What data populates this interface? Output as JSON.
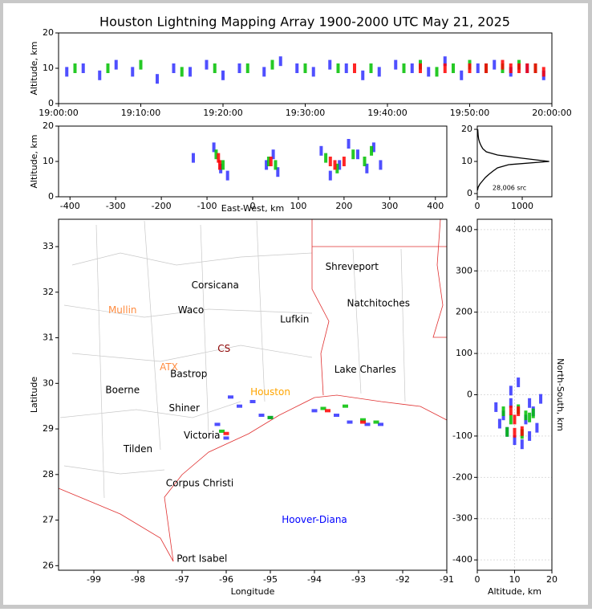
{
  "title": "Houston Lightning Mapping Array 1900-2000 UTC May 21, 2025",
  "chart_data": [
    {
      "type": "scatter",
      "ylabel": "Altitude, km",
      "xlim": [
        0,
        60
      ],
      "ylim": [
        0,
        20
      ],
      "yticks": [
        0,
        10,
        20
      ],
      "xticks": [
        {
          "value": 0,
          "label": "19:00:00"
        },
        {
          "value": 10,
          "label": "19:10:00"
        },
        {
          "value": 20,
          "label": "19:20:00"
        },
        {
          "value": 30,
          "label": "19:30:00"
        },
        {
          "value": 40,
          "label": "19:40:00"
        },
        {
          "value": 50,
          "label": "19:50:00"
        },
        {
          "value": 60,
          "label": "20:00:00"
        }
      ],
      "series": [
        {
          "color": "#3030ff",
          "x": [
            1,
            3,
            5,
            7,
            9,
            12,
            14,
            16,
            18,
            20,
            22,
            25,
            27,
            29,
            31,
            33,
            35,
            37,
            39,
            41,
            43,
            45,
            47,
            49,
            51,
            53,
            55,
            57,
            59
          ],
          "y": [
            9,
            10,
            8,
            11,
            9,
            7,
            10,
            9,
            11,
            8,
            10,
            9,
            12,
            10,
            9,
            11,
            10,
            8,
            9,
            11,
            10,
            9,
            12,
            8,
            10,
            11,
            9,
            10,
            8
          ]
        },
        {
          "color": "#00c000",
          "x": [
            2,
            6,
            10,
            15,
            19,
            23,
            26,
            30,
            34,
            38,
            42,
            44,
            46,
            48,
            50,
            52,
            54,
            56,
            58
          ],
          "y": [
            10,
            10,
            11,
            9,
            10,
            10,
            11,
            10,
            10,
            10,
            10,
            11,
            9,
            10,
            11,
            10,
            10,
            11,
            10
          ]
        },
        {
          "color": "#ff0000",
          "x": [
            36,
            44,
            47,
            50,
            52,
            54,
            55,
            56,
            57,
            58,
            59
          ],
          "y": [
            10,
            10,
            10,
            10,
            10,
            11,
            10,
            10,
            10,
            10,
            9
          ]
        }
      ]
    },
    {
      "type": "scatter",
      "xlabel": "East-West, km",
      "ylabel": "Altitude, km",
      "xlim": [
        -425,
        425
      ],
      "ylim": [
        0,
        20
      ],
      "xticks": [
        -400,
        -300,
        -200,
        -100,
        0,
        100,
        200,
        300,
        400
      ],
      "yticks": [
        0,
        10,
        20
      ],
      "series": [
        {
          "color": "#3030ff",
          "x": [
            -130,
            -85,
            -70,
            -55,
            30,
            45,
            55,
            150,
            170,
            190,
            210,
            230,
            250,
            265,
            280
          ],
          "y": [
            11,
            14,
            8,
            6,
            9,
            12,
            7,
            13,
            6,
            9,
            15,
            12,
            8,
            14,
            9
          ]
        },
        {
          "color": "#00c000",
          "x": [
            -80,
            -65,
            35,
            50,
            160,
            185,
            220,
            245,
            260
          ],
          "y": [
            12,
            9,
            10,
            9,
            11,
            8,
            12,
            10,
            13
          ]
        },
        {
          "color": "#ff0000",
          "x": [
            -75,
            -72,
            40,
            170,
            180,
            200
          ],
          "y": [
            11,
            9,
            10,
            10,
            9,
            10
          ]
        }
      ]
    },
    {
      "type": "line",
      "annotation": "28,006 src",
      "xlim": [
        0,
        1660
      ],
      "ylim": [
        -1,
        21
      ],
      "xticks": [
        0,
        1000
      ],
      "yticks": [
        0,
        10,
        20
      ],
      "series": [
        {
          "color": "#000000",
          "x": [
            5,
            20,
            60,
            120,
            180,
            260,
            350,
            450,
            700,
            1600,
            1000,
            450,
            200,
            120,
            80,
            50,
            30,
            20,
            15,
            10
          ],
          "y": [
            1,
            2,
            3,
            4,
            5,
            6,
            7,
            8,
            9,
            10,
            11,
            12,
            13,
            14,
            15,
            16,
            17,
            18,
            19,
            20
          ]
        }
      ]
    },
    {
      "type": "map",
      "xlabel": "Longitude",
      "ylabel": "Latitude",
      "xlim": [
        -99.8,
        -91
      ],
      "ylim": [
        25.9,
        33.6
      ],
      "xticks": [
        -99,
        -98,
        -97,
        -96,
        -95,
        -94,
        -93,
        -92,
        -91
      ],
      "yticks": [
        26,
        27,
        28,
        29,
        30,
        31,
        32,
        33
      ],
      "labels": [
        {
          "text": "Shreveport",
          "x": -93.15,
          "y": 32.55,
          "color": "#000000"
        },
        {
          "text": "Corsicana",
          "x": -96.25,
          "y": 32.15,
          "color": "#000000"
        },
        {
          "text": "Natchitoches",
          "x": -92.55,
          "y": 31.75,
          "color": "#000000"
        },
        {
          "text": "Mullin",
          "x": -98.35,
          "y": 31.6,
          "color": "#ff8c40"
        },
        {
          "text": "Waco",
          "x": -96.8,
          "y": 31.6,
          "color": "#000000"
        },
        {
          "text": "Lufkin",
          "x": -94.45,
          "y": 31.4,
          "color": "#000000"
        },
        {
          "text": "CS",
          "x": -96.05,
          "y": 30.75,
          "color": "#8b0000"
        },
        {
          "text": "ATX",
          "x": -97.3,
          "y": 30.35,
          "color": "#ff8c40"
        },
        {
          "text": "Lake Charles",
          "x": -92.85,
          "y": 30.3,
          "color": "#000000"
        },
        {
          "text": "Bastrop",
          "x": -96.85,
          "y": 30.2,
          "color": "#000000"
        },
        {
          "text": "Houston",
          "x": -95.0,
          "y": 29.8,
          "color": "#ffa500"
        },
        {
          "text": "Boerne",
          "x": -98.35,
          "y": 29.85,
          "color": "#000000"
        },
        {
          "text": "Shiner",
          "x": -96.95,
          "y": 29.45,
          "color": "#000000"
        },
        {
          "text": "Victoria",
          "x": -96.55,
          "y": 28.85,
          "color": "#000000"
        },
        {
          "text": "Tilden",
          "x": -98.0,
          "y": 28.55,
          "color": "#000000"
        },
        {
          "text": "Corpus Christi",
          "x": -96.6,
          "y": 27.8,
          "color": "#000000"
        },
        {
          "text": "Hoover-Diana",
          "x": -94.0,
          "y": 27.0,
          "color": "#0000ff"
        },
        {
          "text": "Port Isabel",
          "x": -96.55,
          "y": 26.15,
          "color": "#000000"
        }
      ],
      "series": [
        {
          "color": "#3030ff",
          "x": [
            -95.9,
            -95.7,
            -95.4,
            -95.2,
            -96.2,
            -94.0,
            -93.5,
            -93.2,
            -92.8,
            -92.5,
            -96.0,
            -95.0
          ],
          "y": [
            29.7,
            29.5,
            29.6,
            29.3,
            29.1,
            29.4,
            29.3,
            29.15,
            29.1,
            29.1,
            28.8,
            29.25
          ]
        },
        {
          "color": "#00c000",
          "x": [
            -96.1,
            -95.0,
            -93.8,
            -93.3,
            -92.9,
            -92.6
          ],
          "y": [
            28.95,
            29.25,
            29.45,
            29.5,
            29.2,
            29.15
          ]
        },
        {
          "color": "#ff0000",
          "x": [
            -96.0,
            -93.7,
            -92.9
          ],
          "y": [
            28.9,
            29.4,
            29.15
          ]
        }
      ]
    },
    {
      "type": "scatter",
      "xlabel": "Altitude, km",
      "ylabel": "North-South, km",
      "xlim": [
        0,
        20
      ],
      "ylim": [
        -425,
        425
      ],
      "grid": true,
      "xticks": [
        0,
        10,
        20
      ],
      "yticks": [
        -400,
        -300,
        -200,
        -100,
        0,
        100,
        200,
        300,
        400
      ],
      "series": [
        {
          "color": "#3030ff",
          "x": [
            5,
            7,
            8,
            9,
            10,
            12,
            13,
            14,
            15,
            16,
            9,
            11,
            14,
            6,
            17
          ],
          "y": [
            -30,
            -50,
            -90,
            -20,
            -110,
            -120,
            -60,
            -20,
            -40,
            -80,
            10,
            30,
            -100,
            -70,
            -10
          ]
        },
        {
          "color": "#00c000",
          "x": [
            7,
            9,
            11,
            13,
            15,
            8,
            12,
            14
          ],
          "y": [
            -40,
            -60,
            -35,
            -50,
            -45,
            -90,
            -95,
            -55
          ]
        },
        {
          "color": "#ff0000",
          "x": [
            9,
            10,
            11,
            12,
            10
          ],
          "y": [
            -38,
            -60,
            -40,
            -88,
            -92
          ]
        }
      ]
    }
  ]
}
